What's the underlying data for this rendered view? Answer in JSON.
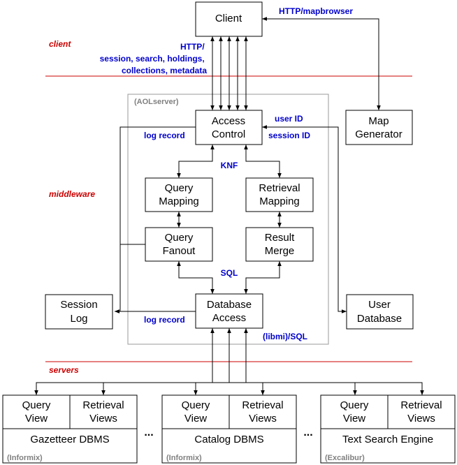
{
  "tiers": {
    "client": "client",
    "middleware": "middleware",
    "servers": "servers"
  },
  "boxes": {
    "client": "Client",
    "access_control": [
      "Access",
      "Control"
    ],
    "map_generator": [
      "Map",
      "Generator"
    ],
    "query_mapping": [
      "Query",
      "Mapping"
    ],
    "retrieval_mapping": [
      "Retrieval",
      "Mapping"
    ],
    "query_fanout": [
      "Query",
      "Fanout"
    ],
    "result_merge": [
      "Result",
      "Merge"
    ],
    "session_log": [
      "Session",
      "Log"
    ],
    "database_access": [
      "Database",
      "Access"
    ],
    "user_database": [
      "User",
      "Database"
    ]
  },
  "labels": {
    "http_mapbrowser": "HTTP/mapbrowser",
    "http_lines": [
      "HTTP/",
      "session, search, holdings,",
      "collections, metadata"
    ],
    "aolserver": "(AOLserver)",
    "log_record_1": "log record",
    "user_id": "user ID",
    "session_id": "session ID",
    "knf": "KNF",
    "sql": "SQL",
    "log_record_2": "log record",
    "libmi_sql": "(libmi)/SQL"
  },
  "servers": [
    {
      "query_view": [
        "Query",
        "View"
      ],
      "retrieval_views": [
        "Retrieval",
        "Views"
      ],
      "name": "Gazetteer DBMS",
      "vendor": "(Informix)"
    },
    {
      "query_view": [
        "Query",
        "View"
      ],
      "retrieval_views": [
        "Retrieval",
        "Views"
      ],
      "name": "Catalog DBMS",
      "vendor": "(Informix)"
    },
    {
      "query_view": [
        "Query",
        "View"
      ],
      "retrieval_views": [
        "Retrieval",
        "Views"
      ],
      "name": "Text Search Engine",
      "vendor": "(Excalibur)"
    }
  ],
  "ellipsis": "...",
  "colors": {
    "annotation": "#0000cc",
    "tier": "#cc0000",
    "vendor": "#808080",
    "outline": "#000000"
  }
}
